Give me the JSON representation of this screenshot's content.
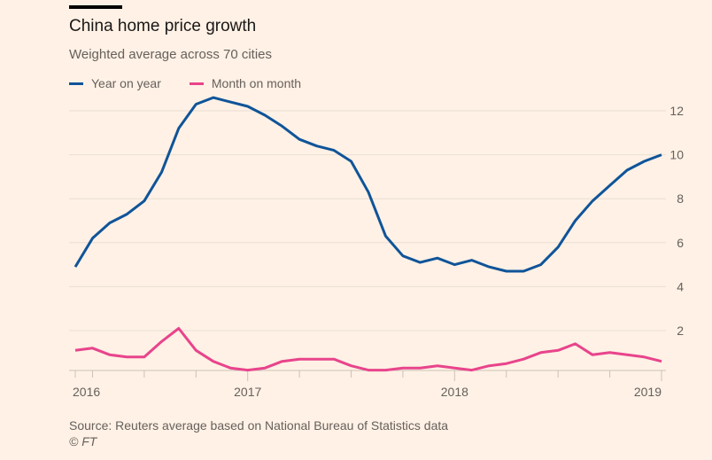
{
  "header": {
    "title": "China home price growth",
    "subtitle": "Weighted average across 70 cities"
  },
  "footer": {
    "source": "Source: Reuters average based on National Bureau of Statistics data",
    "copyright": "© FT"
  },
  "colors": {
    "year_on_year": "#0f5499",
    "month_on_month": "#e8448c",
    "gridline": "#e9dfd5",
    "axis": "#ccc1b7",
    "tick_label": "#66605c",
    "background": "#fff1e5"
  },
  "chart_data": {
    "type": "line",
    "title": "China home price growth",
    "subtitle": "Weighted average across 70 cities",
    "xlabel": "",
    "ylabel": "",
    "ylim": [
      0,
      13
    ],
    "y_ticks": [
      2,
      4,
      6,
      8,
      10,
      12
    ],
    "y_tick_labels": [
      "2",
      "4",
      "6",
      "8",
      "10",
      "12"
    ],
    "y_axis_side": "right",
    "grid": true,
    "legend_position": "top-left",
    "x_tick_labels": [
      "2016",
      "2017",
      "2018",
      "2019"
    ],
    "x": [
      "2016-03",
      "2016-04",
      "2016-05",
      "2016-06",
      "2016-07",
      "2016-08",
      "2016-09",
      "2016-10",
      "2016-11",
      "2016-12",
      "2017-01",
      "2017-02",
      "2017-03",
      "2017-04",
      "2017-05",
      "2017-06",
      "2017-07",
      "2017-08",
      "2017-09",
      "2017-10",
      "2017-11",
      "2017-12",
      "2018-01",
      "2018-02",
      "2018-03",
      "2018-04",
      "2018-05",
      "2018-06",
      "2018-07",
      "2018-08",
      "2018-09",
      "2018-10",
      "2018-11",
      "2018-12",
      "2019-01"
    ],
    "series": [
      {
        "name": "Year on year",
        "values": [
          4.9,
          6.2,
          6.9,
          7.3,
          7.9,
          9.2,
          11.2,
          12.3,
          12.6,
          12.4,
          12.2,
          11.8,
          11.3,
          10.7,
          10.4,
          10.2,
          9.7,
          8.3,
          6.3,
          5.4,
          5.1,
          5.3,
          5.0,
          5.2,
          4.9,
          4.7,
          4.7,
          5.0,
          5.8,
          7.0,
          7.9,
          8.6,
          9.3,
          9.7,
          10.0
        ]
      },
      {
        "name": "Month on month",
        "values": [
          1.1,
          1.2,
          0.9,
          0.8,
          0.8,
          1.5,
          2.1,
          1.1,
          0.6,
          0.3,
          0.2,
          0.3,
          0.6,
          0.7,
          0.7,
          0.7,
          0.4,
          0.2,
          0.2,
          0.3,
          0.3,
          0.4,
          0.3,
          0.2,
          0.4,
          0.5,
          0.7,
          1.0,
          1.1,
          1.4,
          0.9,
          1.0,
          0.9,
          0.8,
          0.6
        ]
      }
    ]
  }
}
